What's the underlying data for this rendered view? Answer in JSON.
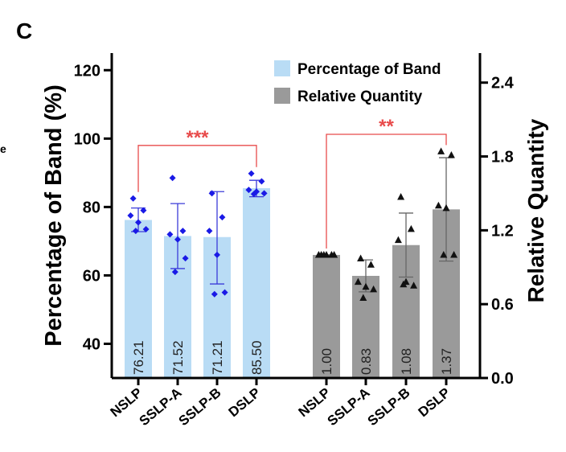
{
  "panel_label": "C",
  "edge_text": "e",
  "chart_data": {
    "type": "bar",
    "legend": {
      "placement": "top-right",
      "entries": [
        {
          "label": "Percentage of Band",
          "color": "#b9dcf5"
        },
        {
          "label": "Relative Quantity",
          "color": "#9a9a9a"
        }
      ]
    },
    "left_axis": {
      "label": "Percentage of Band (%)",
      "ylim": [
        30,
        125
      ],
      "ticks": [
        40,
        60,
        80,
        100,
        120
      ]
    },
    "right_axis": {
      "label": "Relative Quantity",
      "ylim": [
        0,
        2.64
      ],
      "ticks": [
        "0.0",
        "0.6",
        "1.2",
        "1.8",
        "2.4"
      ]
    },
    "groups": [
      {
        "series": "Percentage of Band",
        "axis": "left",
        "bar_color": "#b9dcf5",
        "point_color": "#1a1ae6",
        "point_marker": "diamond",
        "error_color": "#3b3bd9",
        "bars": [
          {
            "category": "NSLP",
            "value": 76.21,
            "label": "76.21",
            "err": [
              72.8,
              79.7
            ],
            "points": [
              82.5,
              79,
              77.5,
              75.5,
              73.5,
              73
            ]
          },
          {
            "category": "SSLP-A",
            "value": 71.52,
            "label": "71.52",
            "err": [
              62,
              81
            ],
            "points": [
              88.5,
              73,
              72,
              70.5,
              65,
              61
            ]
          },
          {
            "category": "SSLP-B",
            "value": 71.21,
            "label": "71.21",
            "err": [
              57.5,
              84.5
            ],
            "points": [
              84,
              77,
              73,
              66,
              55,
              54.5
            ]
          },
          {
            "category": "DSLP",
            "value": 85.5,
            "label": "85.50",
            "err": [
              83,
              87.8
            ],
            "points": [
              89.8,
              87.5,
              85,
              84.5,
              84,
              83.8
            ]
          }
        ]
      },
      {
        "series": "Relative Quantity",
        "axis": "right",
        "bar_color": "#9a9a9a",
        "point_color": "#111111",
        "point_marker": "triangle",
        "error_color": "#666666",
        "bars": [
          {
            "category": "NSLP",
            "value": 1.0,
            "label": "1.00",
            "err": [
              1.0,
              1.0
            ],
            "points": [
              1.0,
              1.0,
              1.0,
              1.0,
              1.0,
              1.0
            ]
          },
          {
            "category": "SSLP-A",
            "value": 0.83,
            "label": "0.83",
            "err": [
              0.7,
              0.96
            ],
            "points": [
              0.97,
              0.92,
              0.78,
              0.74,
              0.72,
              0.65
            ]
          },
          {
            "category": "SSLP-B",
            "value": 1.08,
            "label": "1.08",
            "err": [
              0.82,
              1.34
            ],
            "points": [
              1.47,
              1.21,
              1.12,
              0.78,
              0.75,
              0.76
            ]
          },
          {
            "category": "DSLP",
            "value": 1.37,
            "label": "1.37",
            "err": [
              0.95,
              1.79
            ],
            "points": [
              1.84,
              1.81,
              1.4,
              1.38,
              1.0,
              1.0
            ]
          }
        ]
      }
    ],
    "annotations": [
      {
        "text": "***",
        "group": 0,
        "from": 0,
        "to": 3,
        "y": 98,
        "color": "#e84b4b"
      },
      {
        "text": "**",
        "group": 1,
        "from": 0,
        "to": 3,
        "y": 1.98,
        "color": "#e84b4b"
      }
    ]
  }
}
